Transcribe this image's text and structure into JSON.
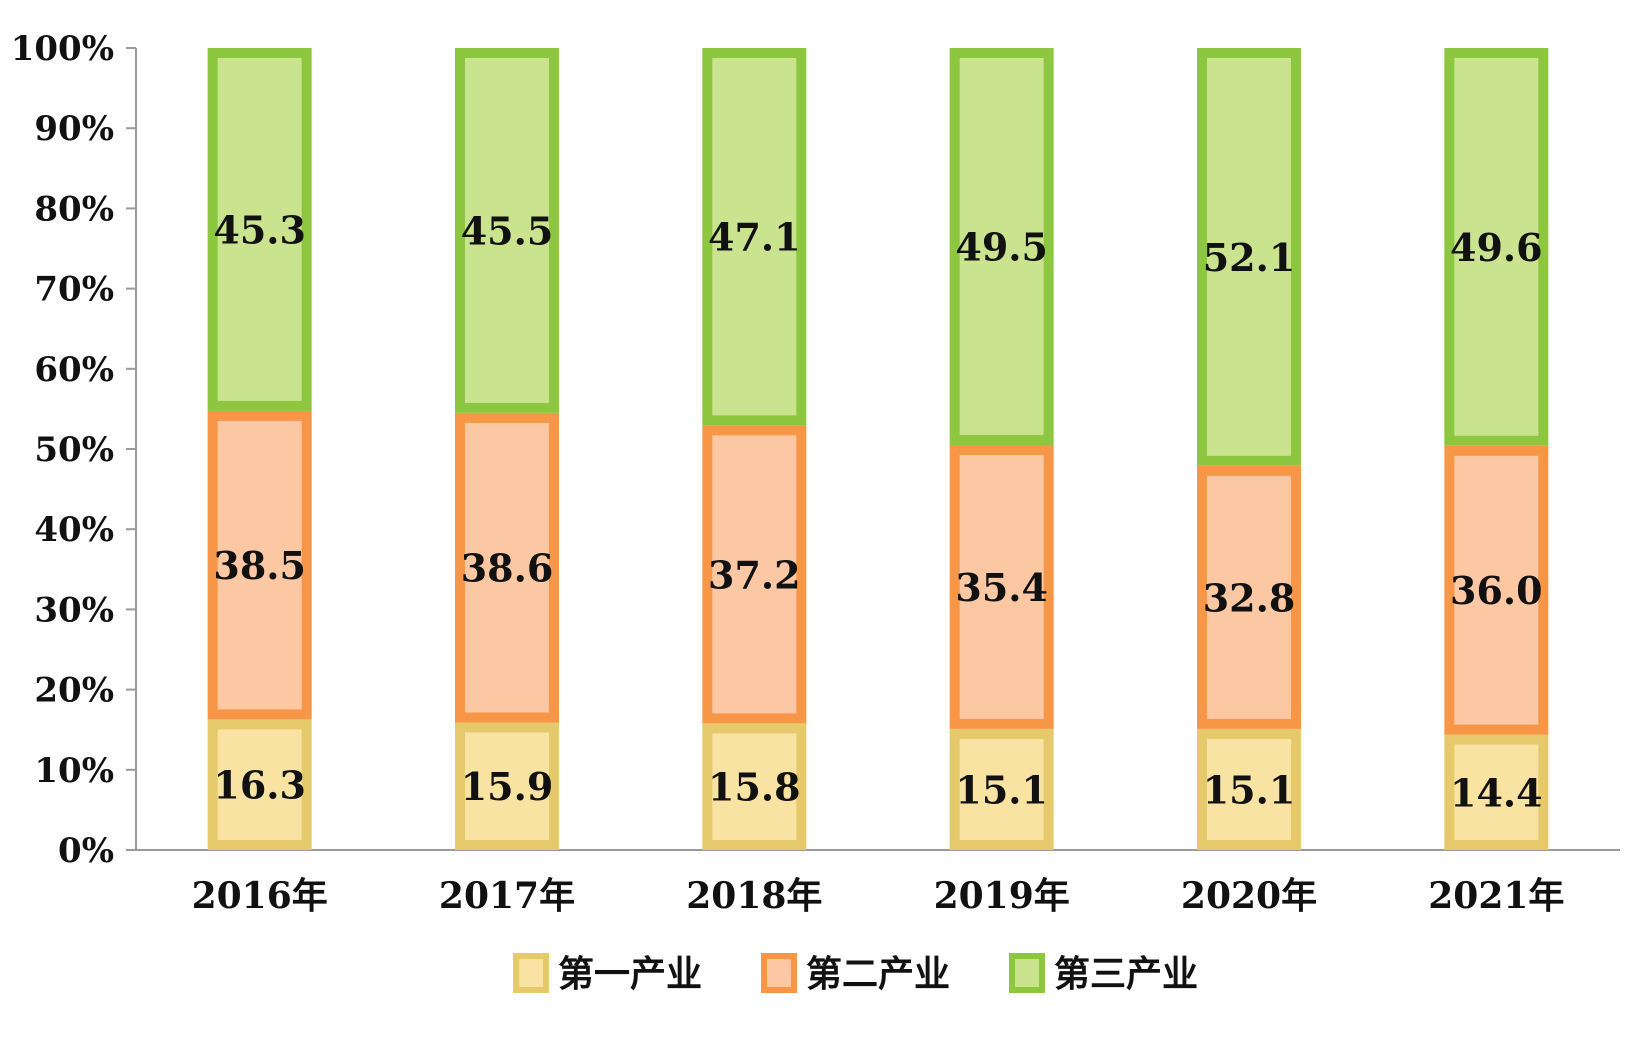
{
  "chart_data": {
    "type": "bar",
    "stacked": true,
    "percent_stacked": true,
    "title": "",
    "xlabel": "",
    "ylabel": "",
    "ylim": [
      0,
      100
    ],
    "y_ticks": [
      "0%",
      "10%",
      "20%",
      "30%",
      "40%",
      "50%",
      "60%",
      "70%",
      "80%",
      "90%",
      "100%"
    ],
    "categories": [
      "2016年",
      "2017年",
      "2018年",
      "2019年",
      "2020年",
      "2021年"
    ],
    "series": [
      {
        "name": "第一产业",
        "values": [
          16.3,
          15.9,
          15.8,
          15.1,
          15.1,
          14.4
        ],
        "fill": "#f9e3a3",
        "stroke": "#e6c96a"
      },
      {
        "name": "第二产业",
        "values": [
          38.5,
          38.6,
          37.2,
          35.4,
          32.8,
          36.0
        ],
        "fill": "#fcc8a4",
        "stroke": "#f79646"
      },
      {
        "name": "第三产业",
        "values": [
          45.3,
          45.5,
          47.1,
          49.5,
          52.1,
          49.6
        ],
        "fill": "#c9e38e",
        "stroke": "#8dc63f"
      }
    ],
    "grid": false,
    "legend_position": "bottom-center"
  }
}
